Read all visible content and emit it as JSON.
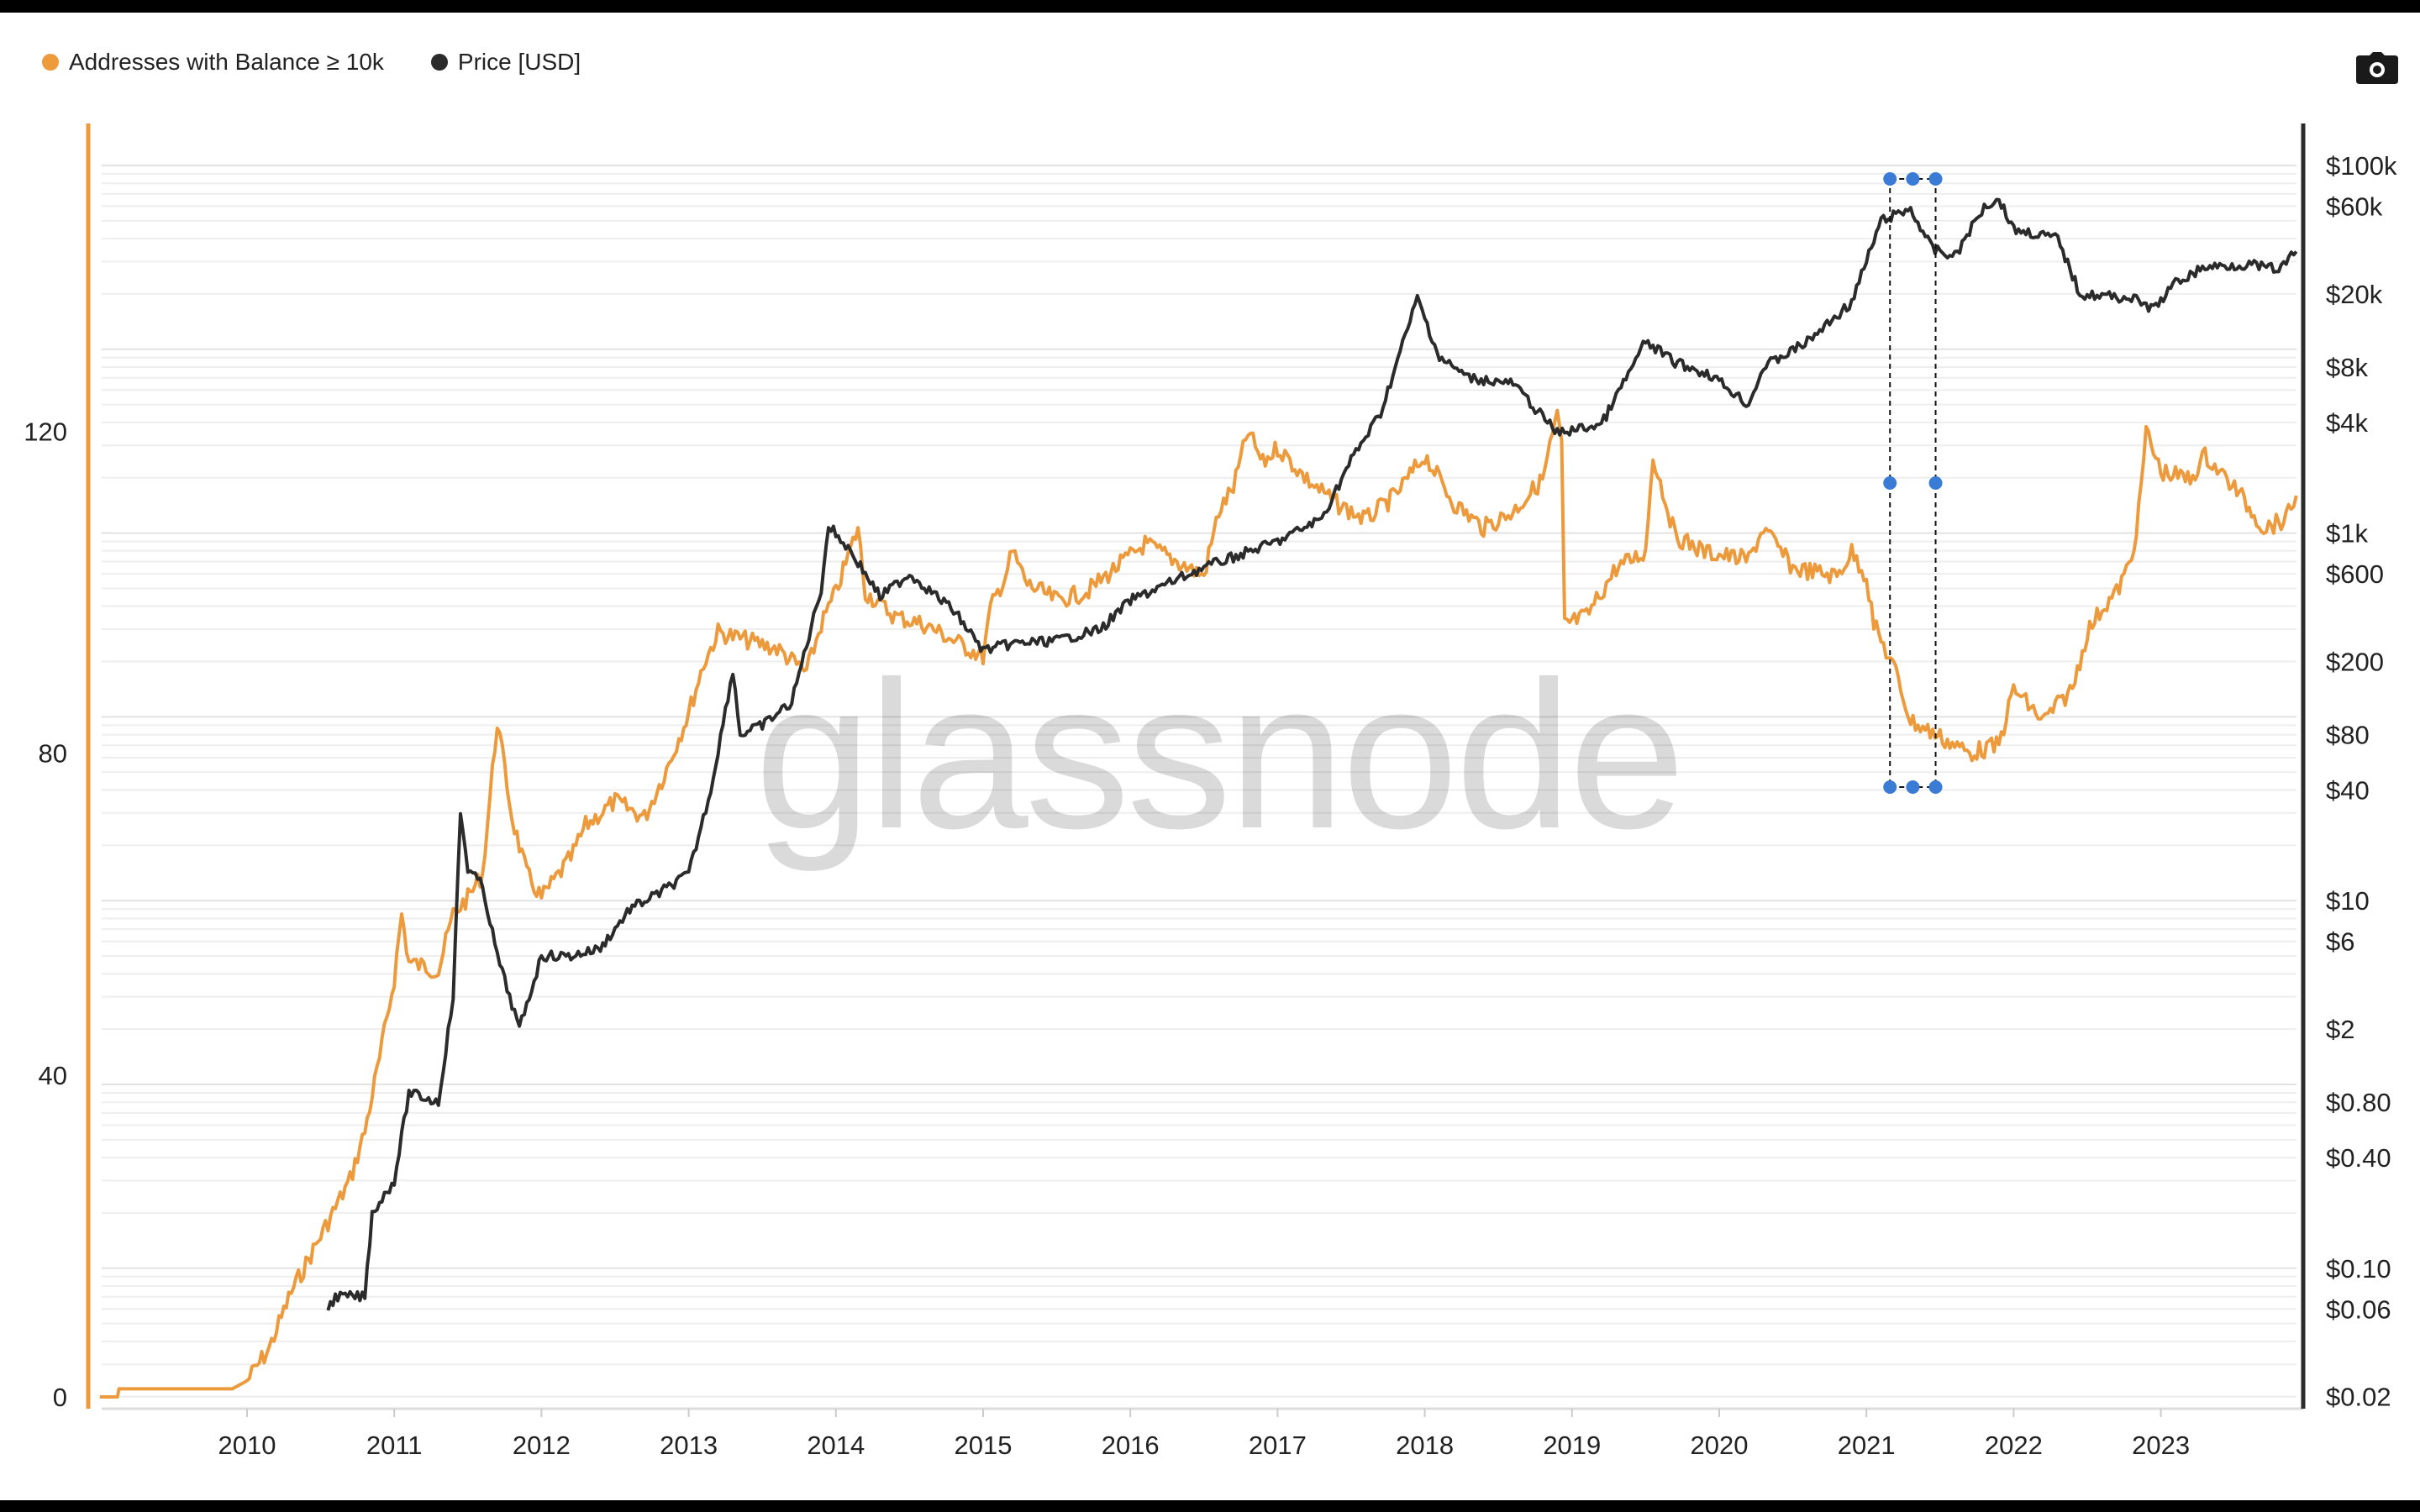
{
  "legend": [
    {
      "label": "Addresses with Balance ≥ 10k",
      "color": "#EC9A3B"
    },
    {
      "label": "Price [USD]",
      "color": "#2B2B2B"
    }
  ],
  "toolbar": {
    "camera_icon": "camera-icon"
  },
  "watermark": "glassnode",
  "chart_data": {
    "type": "line",
    "title": "",
    "xlabel": "",
    "x_ticks": [
      "2010",
      "2011",
      "2012",
      "2013",
      "2014",
      "2015",
      "2016",
      "2017",
      "2018",
      "2019",
      "2020",
      "2021",
      "2022",
      "2023"
    ],
    "xlim": [
      2009.0,
      2023.92
    ],
    "y_left": {
      "label": "Addresses with Balance ≥ 10k",
      "ticks": [
        "0",
        "40",
        "80",
        "120"
      ],
      "tick_values": [
        0,
        40,
        80,
        120
      ],
      "ylim": [
        0,
        150
      ]
    },
    "y_right": {
      "label": "Price [USD]",
      "scale": "log",
      "ticks": [
        "$100k",
        "$60k",
        "$20k",
        "$8k",
        "$4k",
        "$1k",
        "$600",
        "$200",
        "$80",
        "$40",
        "$10",
        "$6",
        "$2",
        "$0.80",
        "$0.40",
        "$0.10",
        "$0.06",
        "$0.02"
      ],
      "tick_values": [
        100000,
        60000,
        20000,
        8000,
        4000,
        1000,
        600,
        200,
        80,
        40,
        10,
        6,
        2,
        0.8,
        0.4,
        0.1,
        0.06,
        0.02
      ],
      "ylim": [
        0.02,
        100000
      ]
    },
    "series": [
      {
        "name": "Addresses with Balance ≥ 10k",
        "axis": "left",
        "color": "#EC9A3B",
        "x": [
          2009.0,
          2009.12,
          2009.13,
          2009.9,
          2010.0,
          2010.15,
          2010.3,
          2010.5,
          2010.7,
          2010.8,
          2010.9,
          2011.0,
          2011.05,
          2011.1,
          2011.3,
          2011.4,
          2011.5,
          2011.6,
          2011.7,
          2011.8,
          2011.9,
          2012.0,
          2012.2,
          2012.3,
          2012.5,
          2012.7,
          2012.85,
          2013.0,
          2013.1,
          2013.2,
          2013.4,
          2013.6,
          2013.8,
          2013.9,
          2014.0,
          2014.15,
          2014.2,
          2014.4,
          2014.6,
          2014.8,
          2015.0,
          2015.05,
          2015.15,
          2015.2,
          2015.3,
          2015.5,
          2015.7,
          2015.9,
          2016.1,
          2016.3,
          2016.5,
          2016.6,
          2016.7,
          2016.8,
          2016.9,
          2017.0,
          2017.2,
          2017.4,
          2017.6,
          2017.8,
          2018.0,
          2018.2,
          2018.4,
          2018.6,
          2018.8,
          2018.9,
          2018.93,
          2018.95,
          2019.1,
          2019.3,
          2019.5,
          2019.55,
          2019.7,
          2019.9,
          2020.2,
          2020.3,
          2020.5,
          2020.8,
          2020.9,
          2021.0,
          2021.05,
          2021.2,
          2021.3,
          2021.5,
          2021.7,
          2021.9,
          2022.0,
          2022.2,
          2022.4,
          2022.5,
          2022.6,
          2022.7,
          2022.8,
          2022.85,
          2022.9,
          2023.0,
          2023.2,
          2023.3,
          2023.5,
          2023.7,
          2023.85,
          2023.92
        ],
        "values": [
          0,
          0,
          1,
          1,
          2,
          6,
          13,
          20,
          27,
          33,
          42,
          52,
          60,
          54,
          53,
          60,
          62,
          65,
          84,
          72,
          65,
          62,
          67,
          71,
          74,
          72,
          78,
          85,
          91,
          95,
          94,
          93,
          90,
          96,
          100,
          108,
          100,
          97,
          96,
          94,
          92,
          98,
          102,
          105,
          101,
          99,
          100,
          103,
          106,
          104,
          102,
          110,
          113,
          120,
          116,
          118,
          114,
          111,
          109,
          112,
          117,
          111,
          108,
          110,
          114,
          122,
          118,
          96,
          97,
          103,
          105,
          117,
          107,
          105,
          104,
          108,
          103,
          102,
          105,
          102,
          96,
          90,
          84,
          82,
          80,
          81,
          88,
          84,
          88,
          95,
          98,
          100,
          104,
          110,
          120,
          115,
          114,
          117,
          113,
          108,
          109,
          112
        ]
      },
      {
        "name": "Price [USD]",
        "axis": "right",
        "color": "#2B2B2B",
        "x": [
          2010.55,
          2010.6,
          2010.8,
          2010.85,
          2011.0,
          2011.1,
          2011.3,
          2011.4,
          2011.45,
          2011.5,
          2011.6,
          2011.7,
          2011.85,
          2012.0,
          2012.2,
          2012.4,
          2012.6,
          2012.8,
          2013.0,
          2013.15,
          2013.3,
          2013.35,
          2013.5,
          2013.7,
          2013.9,
          2013.95,
          2014.1,
          2014.3,
          2014.5,
          2014.8,
          2015.0,
          2015.2,
          2015.5,
          2015.8,
          2016.0,
          2016.5,
          2017.0,
          2017.3,
          2017.5,
          2017.7,
          2017.95,
          2018.1,
          2018.3,
          2018.6,
          2018.9,
          2019.2,
          2019.5,
          2019.7,
          2019.95,
          2020.2,
          2020.3,
          2020.6,
          2020.9,
          2021.0,
          2021.1,
          2021.3,
          2021.45,
          2021.6,
          2021.8,
          2021.9,
          2022.0,
          2022.3,
          2022.45,
          2022.8,
          2022.95,
          2023.1,
          2023.3,
          2023.6,
          2023.8,
          2023.92
        ],
        "values": [
          0.06,
          0.07,
          0.07,
          0.2,
          0.3,
          0.9,
          0.8,
          3,
          30,
          15,
          12,
          5,
          2,
          5,
          5,
          5.5,
          9,
          11,
          14,
          40,
          180,
          80,
          90,
          120,
          500,
          1100,
          800,
          450,
          600,
          380,
          230,
          250,
          260,
          300,
          430,
          650,
          900,
          1200,
          2500,
          4500,
          19000,
          9000,
          7000,
          6500,
          3500,
          3900,
          11000,
          8500,
          7200,
          5000,
          8000,
          11000,
          18000,
          30000,
          50000,
          58000,
          35000,
          32000,
          60000,
          66000,
          45000,
          40000,
          20000,
          19000,
          16500,
          23000,
          28000,
          29000,
          27000,
          34000
        ]
      }
    ],
    "annotations": {
      "selection_range_x": [
        2021.16,
        2021.47
      ]
    },
    "grid": true,
    "legend_position": "top-left"
  }
}
